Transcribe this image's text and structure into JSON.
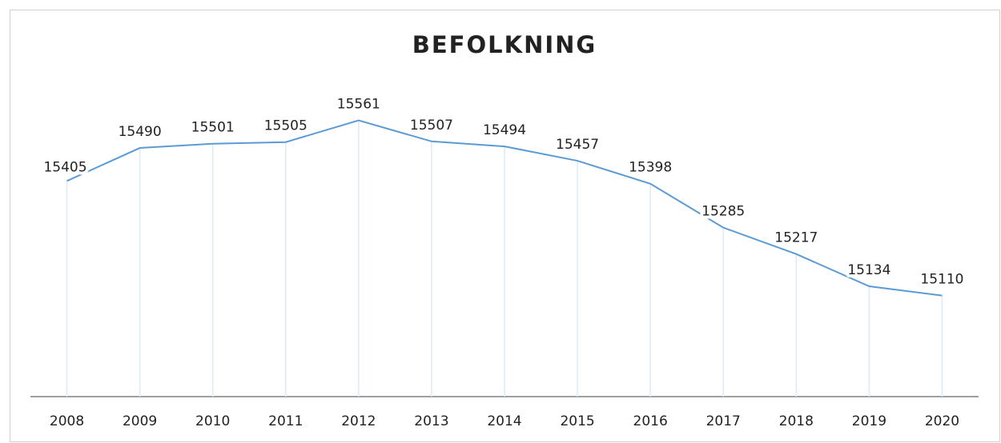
{
  "chart_data": {
    "type": "line",
    "title": "BEFOLKNING",
    "categories": [
      "2008",
      "2009",
      "2010",
      "2011",
      "2012",
      "2013",
      "2014",
      "2015",
      "2016",
      "2017",
      "2018",
      "2019",
      "2020"
    ],
    "values": [
      15405,
      15490,
      15501,
      15505,
      15561,
      15507,
      15494,
      15457,
      15398,
      15285,
      15217,
      15134,
      15110
    ],
    "color": "#5b9bd5",
    "drop_lines": true,
    "ylim": [
      14850,
      15700
    ]
  }
}
